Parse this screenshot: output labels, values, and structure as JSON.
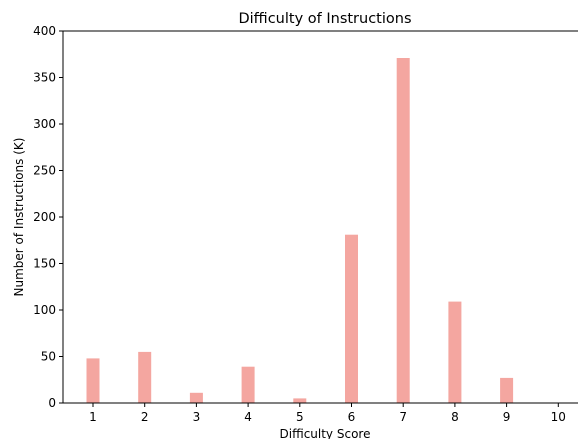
{
  "chart_data": {
    "type": "bar",
    "title": "Difficulty of Instructions",
    "xlabel": "Difficulty Score",
    "ylabel": "Number of Instructions (K)",
    "categories": [
      "1",
      "2",
      "3",
      "4",
      "5",
      "6",
      "7",
      "8",
      "9",
      "10"
    ],
    "values": [
      48,
      55,
      11,
      39,
      5,
      181,
      371,
      109,
      27,
      0
    ],
    "ylim": [
      0,
      400
    ],
    "yticks": [
      0,
      50,
      100,
      150,
      200,
      250,
      300,
      350,
      400
    ],
    "bar_color": "#f4a6a0",
    "grid": false,
    "legend": "none"
  }
}
